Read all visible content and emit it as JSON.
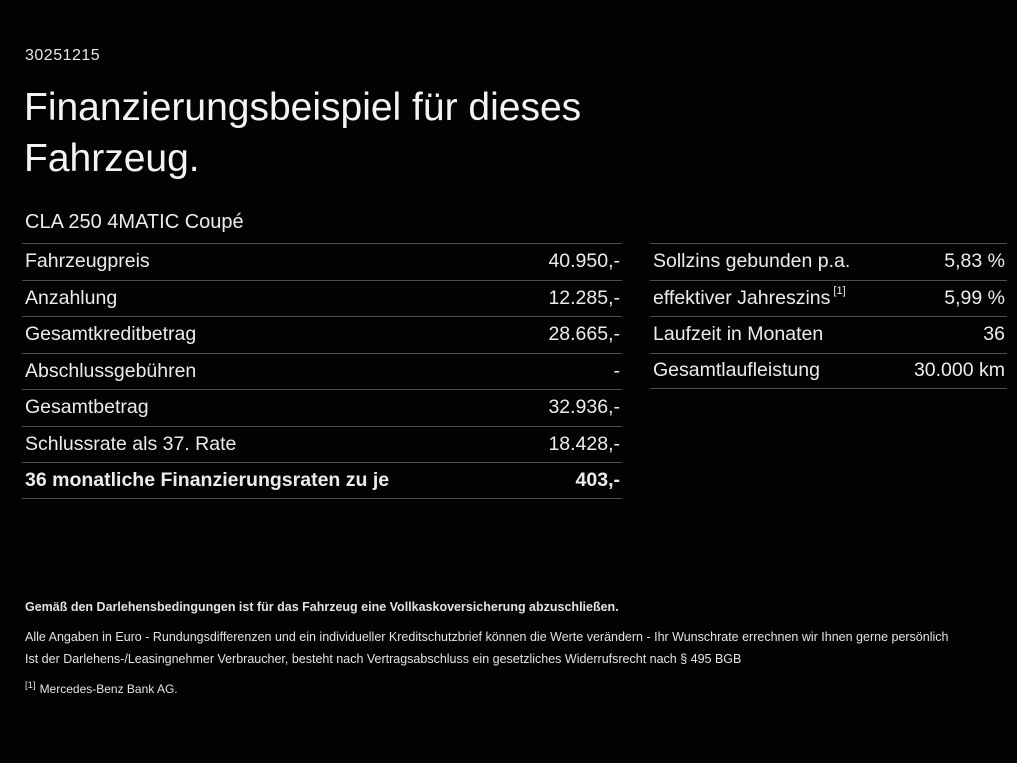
{
  "page": {
    "doc_number": "30251215",
    "title_line1": "Finanzierungsbeispiel für dieses",
    "title_line2": "Fahrzeug.",
    "vehicle": "CLA 250 4MATIC Coupé"
  },
  "left_table": {
    "rows": [
      {
        "label": "Fahrzeugpreis",
        "value": "40.950,-"
      },
      {
        "label": "Anzahlung",
        "value": "12.285,-"
      },
      {
        "label": "Gesamtkreditbetrag",
        "value": "28.665,-"
      },
      {
        "label": "Abschlussgebühren",
        "value": "-"
      },
      {
        "label": "Gesamtbetrag",
        "value": "32.936,-"
      },
      {
        "label": "Schlussrate als 37. Rate",
        "value": "18.428,-"
      },
      {
        "label": "36 monatliche Finanzierungsraten zu je",
        "value": "403,-"
      }
    ]
  },
  "right_table": {
    "rows": [
      {
        "label": "Sollzins gebunden p.a.",
        "sup": "",
        "value": "5,83 %"
      },
      {
        "label": "effektiver Jahreszins",
        "sup": "[1]",
        "value": "5,99 %"
      },
      {
        "label": "Laufzeit in Monaten",
        "sup": "",
        "value": "36"
      },
      {
        "label": "Gesamtlaufleistung",
        "sup": "",
        "value": "30.000 km"
      }
    ]
  },
  "footer": {
    "line_bold": "Gemäß den Darlehensbedingungen ist für das Fahrzeug eine Vollkaskoversicherung abzuschließen.",
    "line2": "Alle Angaben in Euro - Rundungsdifferenzen und ein individueller Kreditschutzbrief können die Werte verändern - Ihr Wunschrate errechnen wir Ihnen gerne persönlich",
    "line3": "Ist der Darlehens-/Leasingnehmer Verbraucher, besteht nach Vertragsabschluss ein gesetzliches Widerrufsrecht nach § 495 BGB",
    "footnote_marker": "[1]",
    "footnote_text": "Mercedes-Benz Bank AG."
  }
}
